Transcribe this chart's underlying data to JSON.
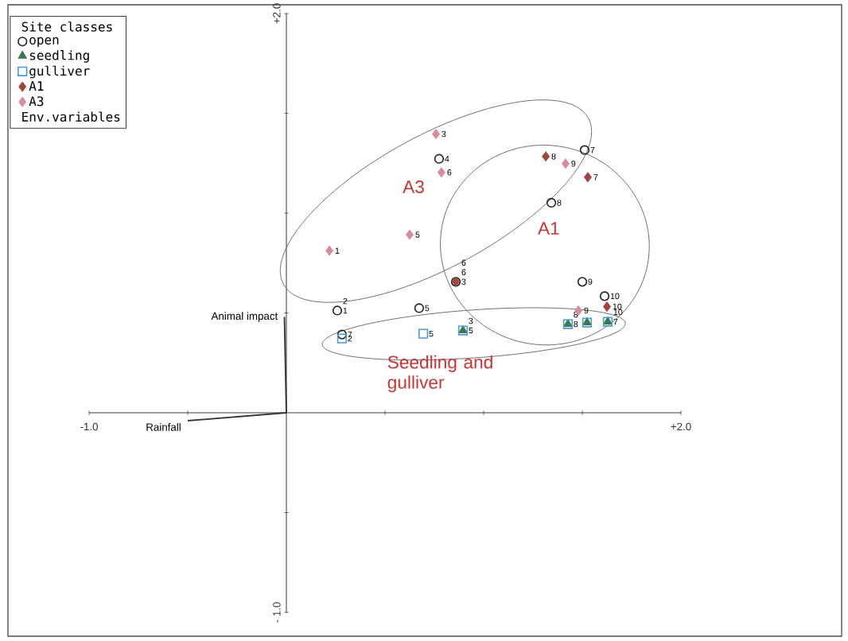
{
  "chart_data": {
    "type": "scatter",
    "legend_title": "Site classes",
    "legend": "top left",
    "xlim": [
      -1,
      2
    ],
    "ylim": [
      -1,
      2
    ],
    "xticks": [
      {
        "value": -1,
        "label": "-1.0"
      },
      {
        "value": -0.5,
        "label": null
      },
      {
        "value": 0,
        "label": null
      },
      {
        "value": 0.5,
        "label": null
      },
      {
        "value": 1,
        "label": null
      },
      {
        "value": 1.5,
        "label": null
      },
      {
        "value": 2,
        "label": "+2.0"
      }
    ],
    "yticks": [
      {
        "value": -1,
        "label": "- 1.0"
      },
      {
        "value": -0.5,
        "label": null
      },
      {
        "value": 0,
        "label": null
      },
      {
        "value": 0.5,
        "label": null
      },
      {
        "value": 1,
        "label": null
      },
      {
        "value": 1.5,
        "label": null
      },
      {
        "value": 2,
        "label": "+2.0"
      }
    ],
    "series": [
      {
        "name": "open",
        "marker": "circle",
        "color": "#222222",
        "x": [
          0.258,
          0.282,
          0.859,
          0.774,
          0.673,
          1.512,
          1.343,
          1.5,
          1.613
        ],
        "values": [
          0.512,
          0.392,
          0.656,
          1.272,
          0.524,
          1.316,
          1.052,
          0.656,
          0.584
        ]
      },
      {
        "name": "seedling",
        "marker": "triangle",
        "color": "#3a7a50",
        "x": [
          0.895,
          1.427,
          1.524,
          1.629
        ],
        "values": [
          0.412,
          0.444,
          0.452,
          0.456
        ]
      },
      {
        "name": "gulliver",
        "marker": "square",
        "color": "#4a9ad4",
        "x": [
          0.282,
          0.694,
          0.895,
          1.427,
          1.524,
          1.629
        ],
        "values": [
          0.372,
          0.396,
          0.412,
          0.444,
          0.452,
          0.456
        ]
      },
      {
        "name": "A1",
        "marker": "diamond",
        "color": "#a0463c",
        "x": [
          0.859,
          1.315,
          1.528,
          1.625
        ],
        "values": [
          0.656,
          1.284,
          1.18,
          0.532
        ]
      },
      {
        "name": "A3",
        "marker": "diamond",
        "color": "#d98c9c",
        "x": [
          0.758,
          0.786,
          0.625,
          0.218,
          1.415,
          1.48
        ],
        "values": [
          1.396,
          1.204,
          0.892,
          0.812,
          1.248,
          0.512
        ]
      },
      {
        "name": "Animal impact",
        "type": "line",
        "marker": "none",
        "color": "#333333",
        "x": [
          0,
          -0.01
        ],
        "values": [
          0,
          0.48
        ]
      },
      {
        "name": "Rainfall",
        "type": "line",
        "marker": "none",
        "color": "#333333",
        "x": [
          0,
          -0.5
        ],
        "values": [
          0,
          -0.04
        ]
      }
    ],
    "annotations": [
      {
        "text": "1",
        "x": 0.258,
        "y": 0.512
      },
      {
        "text": "2",
        "x": 0.258,
        "y": 0.512
      },
      {
        "text": "7",
        "x": 0.282,
        "y": 0.392
      },
      {
        "text": "3",
        "x": 0.859,
        "y": 0.656
      },
      {
        "text": "6",
        "x": 0.859,
        "y": 0.656
      },
      {
        "text": "4",
        "x": 0.774,
        "y": 1.272
      },
      {
        "text": "5",
        "x": 0.673,
        "y": 0.524
      },
      {
        "text": "7",
        "x": 1.512,
        "y": 1.316
      },
      {
        "text": "8",
        "x": 1.343,
        "y": 1.052
      },
      {
        "text": "9",
        "x": 1.5,
        "y": 0.656
      },
      {
        "text": "10",
        "x": 1.613,
        "y": 0.584
      },
      {
        "text": "5",
        "x": 0.895,
        "y": 0.412
      },
      {
        "text": "8",
        "x": 1.427,
        "y": 0.444
      },
      {
        "text": "7",
        "x": 1.629,
        "y": 0.456
      },
      {
        "text": "2",
        "x": 0.282,
        "y": 0.372
      },
      {
        "text": "5",
        "x": 0.694,
        "y": 0.396
      },
      {
        "text": "3",
        "x": 0.895,
        "y": 0.412
      },
      {
        "text": "8",
        "x": 1.427,
        "y": 0.444
      },
      {
        "text": "10",
        "x": 1.629,
        "y": 0.456
      },
      {
        "text": "6",
        "x": 0.859,
        "y": 0.656
      },
      {
        "text": "8",
        "x": 1.315,
        "y": 1.284
      },
      {
        "text": "7",
        "x": 1.528,
        "y": 1.18
      },
      {
        "text": "10",
        "x": 1.625,
        "y": 0.532
      },
      {
        "text": "3",
        "x": 0.758,
        "y": 1.396
      },
      {
        "text": "6",
        "x": 0.786,
        "y": 1.204
      },
      {
        "text": "5",
        "x": 0.625,
        "y": 0.892
      },
      {
        "text": "1",
        "x": 0.218,
        "y": 0.812
      },
      {
        "text": "9",
        "x": 1.415,
        "y": 1.248
      },
      {
        "text": "9",
        "x": 1.48,
        "y": 0.512
      },
      "A3",
      "A1",
      "Seedling and gulliver",
      "Env.variables"
    ]
  }
}
